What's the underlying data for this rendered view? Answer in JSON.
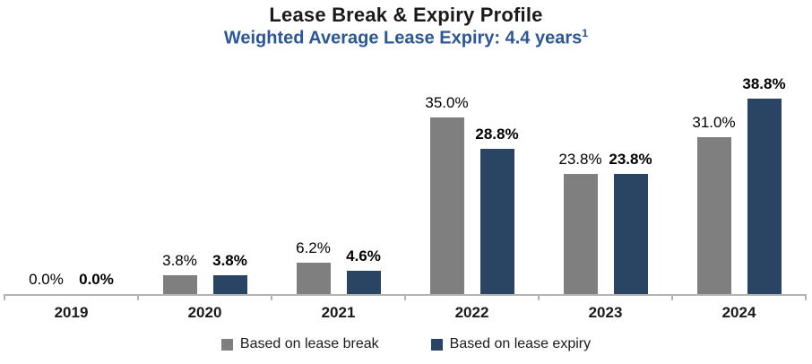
{
  "title": "Lease Break & Expiry Profile",
  "subtitle": "Weighted Average Lease Expiry: 4.4 years",
  "subtitle_superscript": "1",
  "colors": {
    "title": "#1a1a1a",
    "subtitle": "#2b5797",
    "bar_break": "#7f7f7f",
    "bar_expiry": "#2a4464",
    "axis": "#b3b3b3",
    "label_text": "#000000"
  },
  "chart_data": {
    "type": "bar",
    "categories": [
      "2019",
      "2020",
      "2021",
      "2022",
      "2023",
      "2024"
    ],
    "series": [
      {
        "name": "Based on lease break",
        "color": "#7f7f7f",
        "values": [
          0.0,
          3.8,
          6.2,
          35.0,
          23.8,
          31.0
        ],
        "labels": [
          "0.0%",
          "3.8%",
          "6.2%",
          "35.0%",
          "23.8%",
          "31.0%"
        ],
        "label_bold": false
      },
      {
        "name": "Based on lease expiry",
        "color": "#2a4464",
        "values": [
          0.0,
          3.8,
          4.6,
          28.8,
          23.8,
          38.8
        ],
        "labels": [
          "0.0%",
          "3.8%",
          "4.6%",
          "28.8%",
          "23.8%",
          "38.8%"
        ],
        "label_bold": true
      }
    ],
    "title": "Lease Break & Expiry Profile",
    "xlabel": "",
    "ylabel": "",
    "ylim": [
      0,
      45
    ],
    "grid": false,
    "value_labels_shown": true,
    "y_axis_shown": false,
    "legend_position": "bottom"
  }
}
